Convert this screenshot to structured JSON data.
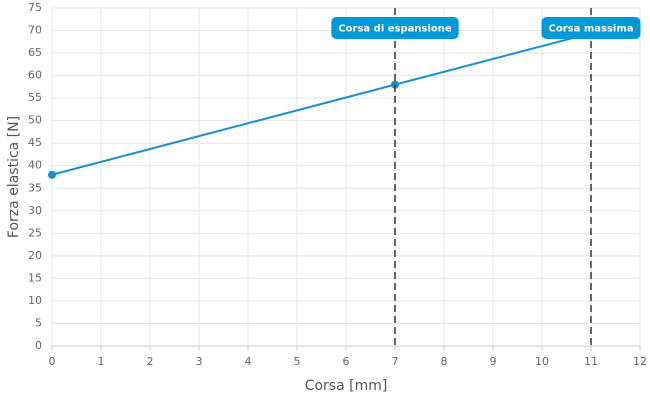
{
  "chart_data": {
    "type": "line",
    "x_label": "Corsa [mm]",
    "y_label": "Forza elastica [N]",
    "x": [
      0,
      7,
      11
    ],
    "series": [
      {
        "name": "Forza elastica",
        "color": "#1a8fd0",
        "values": [
          38,
          58,
          69.4
        ]
      }
    ],
    "xlim": [
      0,
      12
    ],
    "xticks": [
      0,
      1,
      2,
      3,
      4,
      5,
      6,
      7,
      8,
      9,
      10,
      11,
      12
    ],
    "ylim": [
      0,
      75
    ],
    "yticks": [
      0,
      5,
      10,
      15,
      20,
      25,
      30,
      35,
      40,
      45,
      50,
      55,
      60,
      65,
      70,
      75
    ],
    "grid": true,
    "annotations": [
      {
        "x": 7,
        "label": "Corsa di espansione"
      },
      {
        "x": 11,
        "label": "Corsa massima"
      }
    ],
    "annotation_color": "#0099d8"
  }
}
